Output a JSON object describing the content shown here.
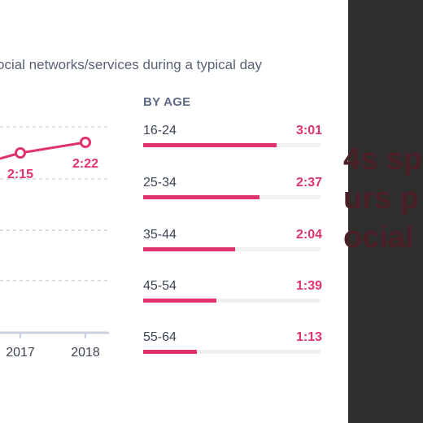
{
  "subtitle": "ocial networks/services during a typical day",
  "background_headline": [
    "4s sp",
    "urs p",
    "ocial"
  ],
  "colors": {
    "accent": "#e0336c",
    "grid": "#b7bfcc",
    "axis": "#c9cfe0",
    "panel": "#2f2f2f"
  },
  "chart_data": [
    {
      "type": "line",
      "x": [
        "2017",
        "2018"
      ],
      "series": [
        {
          "values": [
            2.25,
            2.3667
          ],
          "labels": [
            "2:15",
            "2:22"
          ]
        }
      ],
      "xlabel": "",
      "ylabel": "",
      "grid": true
    },
    {
      "type": "bar",
      "orientation": "horizontal",
      "title": "BY AGE",
      "max_minutes": 240,
      "categories": [
        "16-24",
        "25-34",
        "35-44",
        "45-54",
        "55-64"
      ],
      "values_minutes": [
        181,
        157,
        124,
        99,
        73
      ],
      "labels": [
        "3:01",
        "2:37",
        "2:04",
        "1:39",
        "1:13"
      ]
    }
  ]
}
